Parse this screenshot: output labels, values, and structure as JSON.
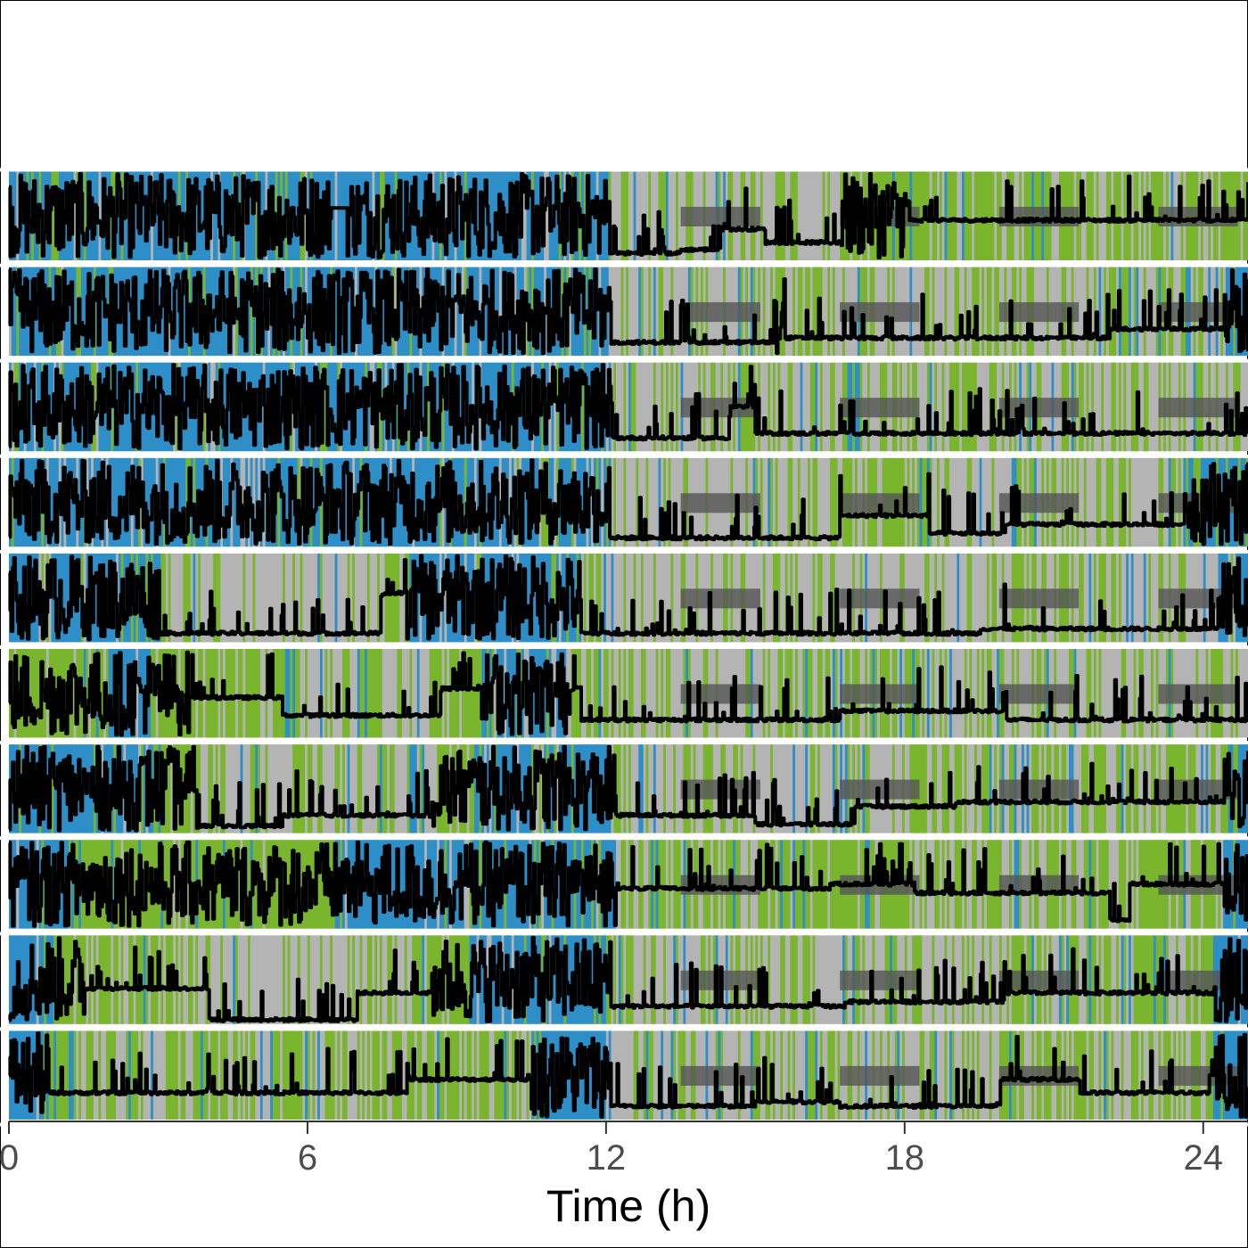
{
  "chart_data": {
    "type": "line",
    "title": "",
    "xlabel": "Time (h)",
    "ylabel": "",
    "xlim": [
      0,
      24.9
    ],
    "x_ticks": [
      0,
      6,
      12,
      18,
      24
    ],
    "x_tick_labels": [
      "0",
      "6",
      "12",
      "18",
      "24"
    ],
    "grid": false,
    "legend": "none",
    "background_state_colors": {
      "active": "#2e8fc8",
      "intermediate": "#7ab52e",
      "inactive": "#b4b4b4"
    },
    "line_color": "#000000",
    "shade_color": "#555555",
    "shaded_intervals_h": [
      [
        13.5,
        15.1
      ],
      [
        16.7,
        18.3
      ],
      [
        19.9,
        21.5
      ],
      [
        23.1,
        24.7
      ]
    ],
    "series": [
      {
        "active_segments": [
          [
            0,
            12.1
          ]
        ],
        "activity_levels": [
          [
            0,
            12.1,
            0.75
          ],
          [
            12.1,
            13.5,
            0.08
          ],
          [
            13.5,
            14.3,
            0.12
          ],
          [
            14.3,
            15.2,
            0.35
          ],
          [
            15.2,
            16.7,
            0.2
          ],
          [
            16.7,
            17.5,
            0.7
          ],
          [
            17.5,
            18.1,
            0.75
          ],
          [
            18.1,
            24.9,
            0.45
          ]
        ],
        "gaps_h": [
          [
            6.5,
            6.8
          ]
        ]
      },
      {
        "active_segments": [
          [
            0,
            12.1
          ],
          [
            24.4,
            24.9
          ]
        ],
        "activity_levels": [
          [
            0,
            12.1,
            0.7
          ],
          [
            12.1,
            15.4,
            0.15
          ],
          [
            15.4,
            15.6,
            0.9
          ],
          [
            15.6,
            22.1,
            0.2
          ],
          [
            22.1,
            23.5,
            0.3
          ],
          [
            23.5,
            24.4,
            0.3
          ],
          [
            24.4,
            24.9,
            0.8
          ]
        ],
        "gaps_h": []
      },
      {
        "active_segments": [
          [
            0,
            12.1
          ]
        ],
        "activity_levels": [
          [
            0,
            12.1,
            0.65
          ],
          [
            12.1,
            14.5,
            0.15
          ],
          [
            14.5,
            15.0,
            0.5
          ],
          [
            15.0,
            24.9,
            0.2
          ]
        ],
        "gaps_h": []
      },
      {
        "active_segments": [
          [
            0,
            12.1
          ],
          [
            23.6,
            24.9
          ]
        ],
        "activity_levels": [
          [
            0,
            4.6,
            0.7
          ],
          [
            4.6,
            6.5,
            0.35
          ],
          [
            6.5,
            12.1,
            0.65
          ],
          [
            12.1,
            16.7,
            0.1
          ],
          [
            16.7,
            18.5,
            0.35
          ],
          [
            18.5,
            20.0,
            0.15
          ],
          [
            20.0,
            23.6,
            0.25
          ],
          [
            23.6,
            24.9,
            0.7
          ]
        ],
        "gaps_h": []
      },
      {
        "active_segments": [
          [
            0,
            3.0
          ],
          [
            8.0,
            11.5
          ],
          [
            24.3,
            24.9
          ]
        ],
        "activity_levels": [
          [
            0,
            3.0,
            0.7
          ],
          [
            3.0,
            7.5,
            0.1
          ],
          [
            7.5,
            11.5,
            0.55
          ],
          [
            11.5,
            19.5,
            0.1
          ],
          [
            19.5,
            24.3,
            0.15
          ],
          [
            24.3,
            24.9,
            0.8
          ]
        ],
        "gaps_h": []
      },
      {
        "active_segments": [
          [
            2.0,
            2.8
          ],
          [
            9.5,
            11.3
          ]
        ],
        "activity_levels": [
          [
            0,
            3.6,
            0.6
          ],
          [
            3.6,
            5.5,
            0.45
          ],
          [
            5.5,
            8.7,
            0.25
          ],
          [
            8.7,
            11.5,
            0.55
          ],
          [
            11.5,
            16.7,
            0.2
          ],
          [
            16.7,
            20.0,
            0.3
          ],
          [
            20.0,
            24.9,
            0.2
          ]
        ],
        "gaps_h": []
      },
      {
        "active_segments": [
          [
            0,
            3.0
          ],
          [
            9.3,
            12.1
          ],
          [
            24.5,
            24.9
          ]
        ],
        "activity_levels": [
          [
            0,
            3.8,
            0.65
          ],
          [
            3.8,
            5.5,
            0.08
          ],
          [
            5.5,
            8.5,
            0.2
          ],
          [
            8.5,
            12.2,
            0.6
          ],
          [
            12.2,
            13.5,
            0.2
          ],
          [
            13.5,
            15.0,
            0.2
          ],
          [
            15.0,
            17.0,
            0.1
          ],
          [
            17.0,
            19.0,
            0.3
          ],
          [
            19.0,
            21.0,
            0.35
          ],
          [
            21.0,
            24.4,
            0.35
          ],
          [
            24.4,
            24.9,
            0.7
          ]
        ],
        "gaps_h": []
      },
      {
        "active_segments": [
          [
            0,
            1.2
          ],
          [
            6.5,
            12.2
          ],
          [
            24.4,
            24.9
          ]
        ],
        "activity_levels": [
          [
            0,
            12.2,
            0.6
          ],
          [
            12.2,
            16.5,
            0.45
          ],
          [
            16.5,
            18.2,
            0.5
          ],
          [
            18.2,
            22.1,
            0.4
          ],
          [
            22.1,
            22.5,
            0.1
          ],
          [
            22.5,
            24.4,
            0.5
          ],
          [
            24.4,
            24.9,
            0.8
          ]
        ],
        "gaps_h": []
      },
      {
        "active_segments": [
          [
            0,
            0.9
          ],
          [
            9.2,
            12.0
          ],
          [
            24.2,
            24.9
          ]
        ],
        "activity_levels": [
          [
            0,
            1.5,
            0.7
          ],
          [
            1.5,
            4.0,
            0.4
          ],
          [
            4.0,
            7.0,
            0.05
          ],
          [
            7.0,
            8.5,
            0.35
          ],
          [
            8.5,
            12.1,
            0.6
          ],
          [
            12.1,
            16.8,
            0.2
          ],
          [
            16.8,
            18.5,
            0.25
          ],
          [
            18.5,
            20.0,
            0.25
          ],
          [
            20.0,
            24.2,
            0.35
          ],
          [
            24.2,
            24.9,
            0.75
          ]
        ],
        "gaps_h": []
      },
      {
        "active_segments": [
          [
            0,
            0.7
          ],
          [
            10.5,
            12.1
          ],
          [
            24.2,
            24.9
          ]
        ],
        "activity_levels": [
          [
            0,
            0.8,
            0.6
          ],
          [
            0.8,
            8.0,
            0.3
          ],
          [
            8.0,
            12.1,
            0.45
          ],
          [
            12.1,
            15.0,
            0.15
          ],
          [
            15.0,
            16.7,
            0.2
          ],
          [
            16.7,
            19.9,
            0.15
          ],
          [
            19.9,
            21.5,
            0.45
          ],
          [
            21.5,
            24.1,
            0.3
          ],
          [
            24.1,
            24.9,
            0.5
          ]
        ],
        "gaps_h": []
      }
    ]
  }
}
